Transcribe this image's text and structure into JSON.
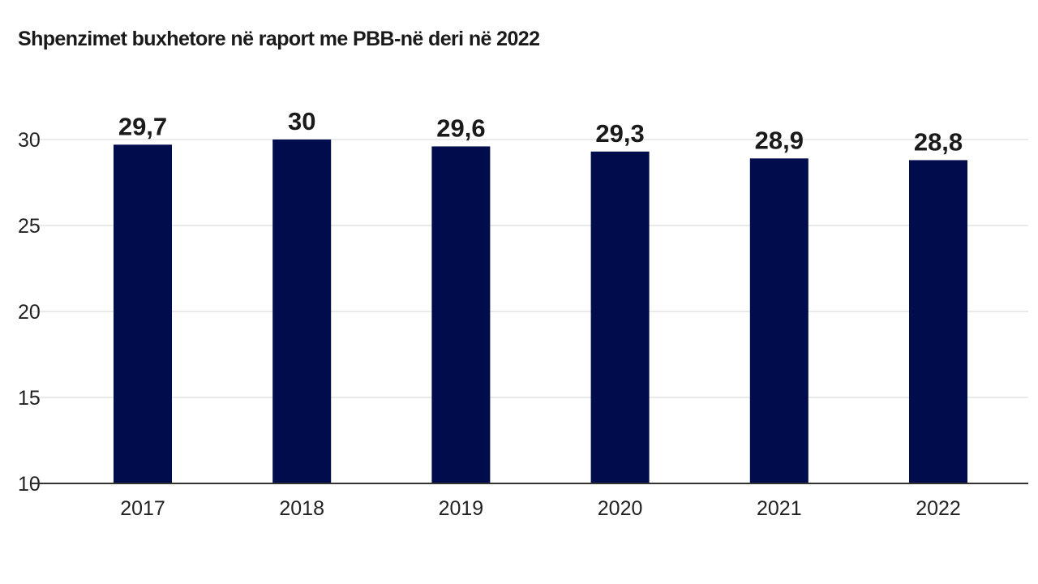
{
  "chart_data": {
    "type": "bar",
    "title": "Shpenzimet buxhetore në raport me PBB-në deri në 2022",
    "xlabel": "",
    "ylabel": "",
    "categories": [
      "2017",
      "2018",
      "2019",
      "2020",
      "2021",
      "2022"
    ],
    "values": [
      29.7,
      30,
      29.6,
      29.3,
      28.9,
      28.8
    ],
    "value_labels": [
      "29,7",
      "30",
      "29,6",
      "29,3",
      "28,9",
      "28,8"
    ],
    "ylim": [
      10,
      30
    ],
    "yticks": [
      10,
      15,
      20,
      25,
      30
    ],
    "grid": true,
    "legend": "none",
    "colors": {
      "bar": "#000c4b",
      "grid": "#e3e3e3",
      "axis": "#333333"
    }
  }
}
